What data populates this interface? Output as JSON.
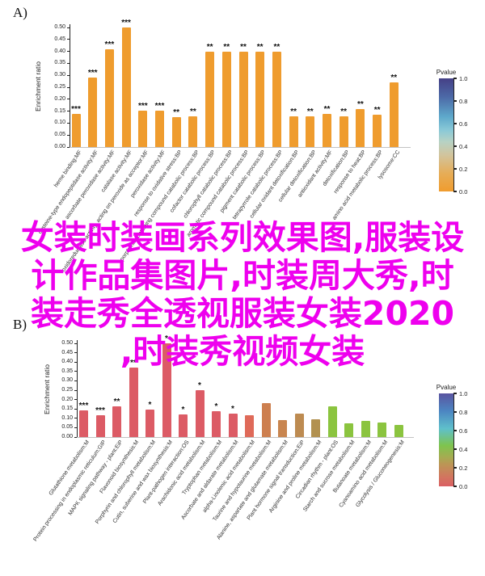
{
  "overlay": {
    "color": "#ee00ee",
    "lines": [
      "女装时装画系列效果图,服装设",
      "计作品集图片,时装周大秀,时",
      "装走秀全透视服装女装2020",
      ",时装秀视频女装"
    ]
  },
  "chart_data": [
    {
      "type": "bar",
      "panel_label": "A)",
      "ylabel": "Enrichment ratio",
      "ylim": [
        0,
        0.5
      ],
      "yticks": [
        "0.00",
        "0.05",
        "0.10",
        "0.15",
        "0.20",
        "0.25",
        "0.30",
        "0.35",
        "0.40",
        "0.45",
        "0.50"
      ],
      "grid": false,
      "bar_color": "#ef9c2e",
      "categories": [
        "heme binding:MF",
        "cysteine-type endopeptidase activity:MF",
        "ascorbate peroxidase activity:MF",
        "catalase activity:MF",
        "oxidoreductase activity, acting on peroxide as acceptor:MF",
        "peroxidase activity:MF",
        "response to oxidative stress:BP",
        "porphyrin-containing compound catabolic process:BP",
        "cofactor catabolic process:BP",
        "chlorophyll catabolic process:BP",
        "aromatic compound catabolic process:BP",
        "pigment catabolic process:BP",
        "tetrapyrrole catabolic process:BP",
        "cellular oxidant detoxification:BP",
        "cellular detoxification:BP",
        "antioxidant activity:MF",
        "detoxification:BP",
        "response to heat:BP",
        "amino acid metabolic process:BP",
        "lysosome:CC"
      ],
      "values": [
        0.14,
        0.29,
        0.41,
        0.5,
        0.152,
        0.152,
        0.125,
        0.13,
        0.4,
        0.4,
        0.4,
        0.4,
        0.4,
        0.13,
        0.13,
        0.139,
        0.13,
        0.16,
        0.135,
        0.27
      ],
      "significance": [
        "***",
        "***",
        "***",
        "***",
        "***",
        "***",
        "**",
        "**",
        "**",
        "**",
        "**",
        "**",
        "**",
        "**",
        "**",
        "**",
        "**",
        "**",
        "**",
        "**"
      ],
      "legend": {
        "title": "Pvalue",
        "position": "right",
        "ticks": [
          "1.0",
          "0.8",
          "0.6",
          "0.4",
          "0.2",
          "0.0"
        ],
        "gradient_stops": [
          "#454086 0%",
          "#4c68a6 16%",
          "#5ea9cb 34%",
          "#8bc9d7 46%",
          "#b7d2c4 56%",
          "#d2c49c 68%",
          "#e6ad57 84%",
          "#f09c2e 100%"
        ]
      }
    },
    {
      "type": "bar",
      "panel_label": "B)",
      "ylabel": "Enrichment ratio",
      "ylim": [
        0,
        0.5
      ],
      "yticks": [
        "0.00",
        "0.05",
        "0.10",
        "0.15",
        "0.20",
        "0.25",
        "0.30",
        "0.35",
        "0.40",
        "0.45",
        "0.50"
      ],
      "grid": false,
      "bar_colors": [
        "#dc5b65",
        "#dc5b65",
        "#dc5b65",
        "#dc5b65",
        "#dc5b65",
        "#dc5b65",
        "#dc5b65",
        "#dc5b65",
        "#dc5b65",
        "#dc5b65",
        "#df6a59",
        "#cd7f4f",
        "#c8854f",
        "#bd8b51",
        "#b29150",
        "#8bc43f",
        "#8bc43f",
        "#8bc43f",
        "#8bc43f",
        "#8bc43f"
      ],
      "categories": [
        "Glutathione metabolism:M",
        "Protein processing in endoplasmic reticulum:GIP",
        "MAPK signaling pathway - plant:EiP",
        "Flavonoid biosynthesis:M",
        "Porphyrin and chlorophyll metabolism:M",
        "Cutin, suberine and wax biosynthesis:M",
        "Plant-pathogen interaction:OS",
        "Arachidonic acid metabolism:M",
        "Tryptophan metabolism:M",
        "Ascorbate and aldarate metabolism:M",
        "alpha-Linolenic acid metabolism:M",
        "Taurine and hypotaurine metabolism:M",
        "Alanine, aspartate and glutamate metabolism:M",
        "Plant hormone signal transduction:EiP",
        "Arginine and proline metabolism:M",
        "Circadian rhythm - plant:OS",
        "Starch and sucrose metabolism:M",
        "Butanoate metabolism:M",
        "Cyanoamino acid metabolism:M",
        "Glycolysis / Gluconeogenesis:M"
      ],
      "values": [
        0.142,
        0.116,
        0.163,
        0.372,
        0.146,
        0.5,
        0.119,
        0.249,
        0.136,
        0.126,
        0.116,
        0.18,
        0.091,
        0.125,
        0.095,
        0.165,
        0.073,
        0.086,
        0.078,
        0.065
      ],
      "significance": [
        "***",
        "***",
        "**",
        "**",
        "*",
        "*",
        "*",
        "*",
        "*",
        "*",
        "",
        "",
        "",
        "",
        "",
        "",
        "",
        "",
        "",
        ""
      ],
      "legend": {
        "title": "Pvalue",
        "position": "right",
        "ticks": [
          "1.0",
          "0.8",
          "0.6",
          "0.4",
          "0.2",
          "0.0"
        ],
        "gradient_stops": [
          "#5a54a0 0%",
          "#4c86c2 19%",
          "#5fc0cb 38%",
          "#7ec44e 56%",
          "#a4ad51 68%",
          "#bb9655 76%",
          "#d2755f 90%",
          "#da5f63 100%"
        ]
      }
    }
  ]
}
